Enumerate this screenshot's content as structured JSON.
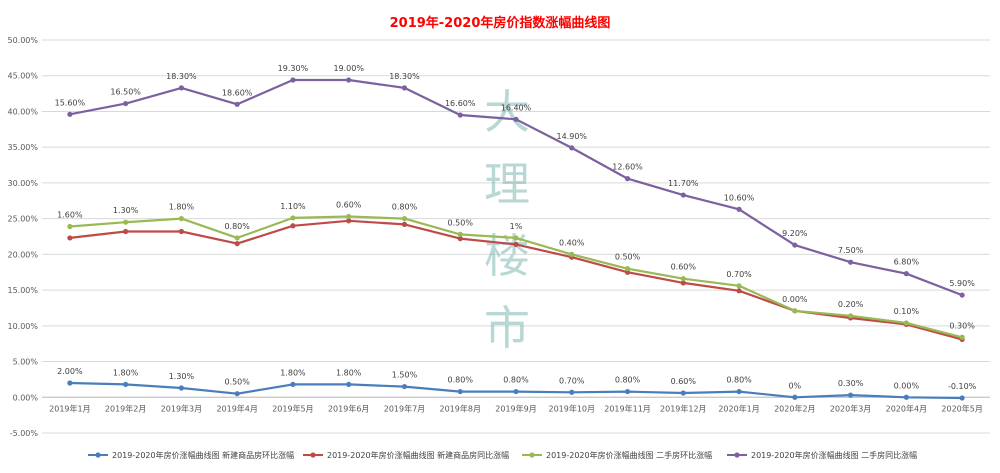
{
  "chart_data": {
    "type": "line",
    "title": "2019年-2020年房价指数涨幅曲线图",
    "title_color": "#ff0000",
    "xlabel": "",
    "ylabel": "",
    "ylim": [
      -5,
      50
    ],
    "ytick_step": 5,
    "ytick_labels": [
      "-5.00%",
      "0.00%",
      "5.00%",
      "10.00%",
      "15.00%",
      "20.00%",
      "25.00%",
      "30.00%",
      "35.00%",
      "40.00%",
      "45.00%",
      "50.00%"
    ],
    "categories": [
      "2019年1月",
      "2019年2月",
      "2019年3月",
      "2019年4月",
      "2019年5月",
      "2019年6月",
      "2019年7月",
      "2019年8月",
      "2019年9月",
      "2019年10月",
      "2019年11月",
      "2019年12月",
      "2020年1月",
      "2020年2月",
      "2020年3月",
      "2020年4月",
      "2020年5月"
    ],
    "grid": true,
    "legend_position": "bottom",
    "watermark": [
      "大",
      "理",
      "楼",
      "市"
    ],
    "series": [
      {
        "name": "2019-2020年房价涨幅曲线图 新建商品房环比涨幅",
        "color": "#4a7ebb",
        "values": [
          2.0,
          1.8,
          1.3,
          0.5,
          1.8,
          1.8,
          1.5,
          0.8,
          0.8,
          0.7,
          0.8,
          0.6,
          0.8,
          0.0,
          0.3,
          0.0,
          -0.1
        ],
        "labels": [
          "2.00%",
          "1.80%",
          "1.30%",
          "0.50%",
          "1.80%",
          "1.80%",
          "1.50%",
          "0.80%",
          "0.80%",
          "0.70%",
          "0.80%",
          "0.60%",
          "0.80%",
          "0%",
          "0.30%",
          "0.00%",
          "-0.10%"
        ]
      },
      {
        "name": "2019-2020年房价涨幅曲线图 新建商品房同比涨幅",
        "color": "#be4b48",
        "values": [
          22.3,
          23.2,
          23.2,
          21.5,
          24.0,
          24.7,
          24.2,
          22.2,
          21.4,
          19.6,
          17.5,
          16.0,
          14.9,
          12.1,
          11.1,
          10.2,
          8.1
        ],
        "labels": []
      },
      {
        "name": "2019-2020年房价涨幅曲线图 二手房环比涨幅",
        "color": "#98b954",
        "values": [
          23.9,
          24.5,
          25.0,
          22.3,
          25.1,
          25.3,
          25.0,
          22.8,
          22.3,
          20.0,
          18.0,
          16.6,
          15.6,
          12.1,
          11.4,
          10.4,
          8.4
        ],
        "labels": [
          "1.60%",
          "1.30%",
          "1.80%",
          "0.80%",
          "1.10%",
          "0.60%",
          "0.80%",
          "0.50%",
          "1%",
          "0.40%",
          "0.50%",
          "0.60%",
          "0.70%",
          "0.00%",
          "0.20%",
          "0.10%",
          "0.30%"
        ]
      },
      {
        "name": "2019-2020年房价涨幅曲线图 二手房同比涨幅",
        "color": "#7d60a0",
        "values": [
          39.6,
          41.1,
          43.3,
          41.0,
          44.4,
          44.4,
          43.3,
          39.5,
          38.9,
          34.9,
          30.6,
          28.3,
          26.3,
          21.3,
          18.9,
          17.3,
          14.3
        ],
        "labels": [
          "15.60%",
          "16.50%",
          "18.30%",
          "18.60%",
          "19.30%",
          "19.00%",
          "18.30%",
          "16.60%",
          "16.40%",
          "14.90%",
          "12.60%",
          "11.70%",
          "10.60%",
          "9.20%",
          "7.50%",
          "6.80%",
          "5.90%"
        ]
      }
    ]
  }
}
